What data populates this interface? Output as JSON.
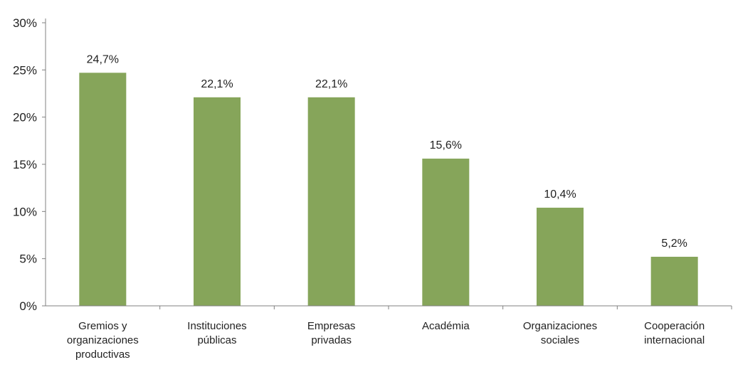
{
  "chart_data": {
    "type": "bar",
    "categories": [
      [
        "Gremios y",
        "organizaciones",
        "productivas"
      ],
      [
        "Instituciones",
        "públicas"
      ],
      [
        "Empresas",
        "privadas"
      ],
      [
        "Académia"
      ],
      [
        "Organizaciones",
        "sociales"
      ],
      [
        "Cooperación",
        "internacional"
      ]
    ],
    "values": [
      24.7,
      22.1,
      22.1,
      15.6,
      10.4,
      5.2
    ],
    "data_labels": [
      "24,7%",
      "22,1%",
      "22,1%",
      "15,6%",
      "10,4%",
      "5,2%"
    ],
    "y_ticks": [
      {
        "value": 0,
        "label": "0%"
      },
      {
        "value": 5,
        "label": "5%"
      },
      {
        "value": 10,
        "label": "10%"
      },
      {
        "value": 15,
        "label": "15%"
      },
      {
        "value": 20,
        "label": "20%"
      },
      {
        "value": 25,
        "label": "25%"
      },
      {
        "value": 30,
        "label": "30%"
      }
    ],
    "ylim": [
      0,
      30
    ],
    "grid": false,
    "bar_color": "#86a55a",
    "title": "",
    "xlabel": "",
    "ylabel": ""
  }
}
